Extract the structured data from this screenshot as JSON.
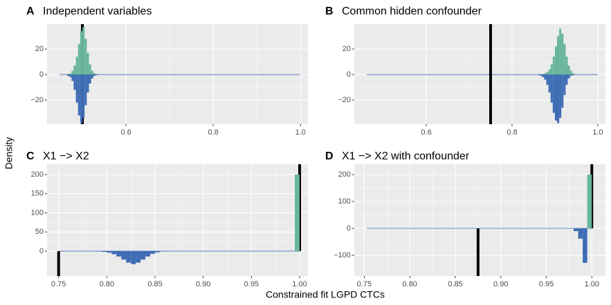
{
  "ylabel": "Density",
  "xlabel": "Constrained fit LGPD CTCs",
  "chart_data": [
    {
      "type": "histogram",
      "tag": "A",
      "title": "Independent variables",
      "xlim": [
        0.419,
        1.017
      ],
      "ylim": [
        -38.9,
        39.5
      ],
      "xticks": [
        0.6,
        0.8,
        {
          "value": 1.0,
          "label": "1.0"
        }
      ],
      "yticks": [
        {
          "value": -20,
          "label": "−20"
        },
        0,
        20
      ],
      "vline_up": 0.5,
      "vline_down": 0.5,
      "grid": true,
      "series": [
        {
          "color": "#69b59c",
          "bins": [
            0.46,
            0.465,
            0.47,
            0.475,
            0.48,
            0.485,
            0.49,
            0.495,
            0.5,
            0.505,
            0.51,
            0.515,
            0.52,
            0.525,
            0.53,
            0.535,
            0.54
          ],
          "values": [
            0,
            0.5,
            1,
            3,
            7,
            14,
            24,
            34,
            37,
            28,
            17,
            8,
            3,
            1,
            0.5,
            0
          ]
        },
        {
          "color": "#3e6db4",
          "bins": [
            0.46,
            0.465,
            0.47,
            0.475,
            0.48,
            0.485,
            0.49,
            0.495,
            0.5,
            0.505,
            0.51,
            0.515,
            0.52,
            0.525,
            0.53,
            0.535,
            0.54
          ],
          "values": [
            0,
            -1,
            -2,
            -5,
            -12,
            -22,
            -32,
            -38,
            -34,
            -24,
            -14,
            -7,
            -3,
            -1,
            -0.5,
            0
          ]
        }
      ]
    },
    {
      "type": "histogram",
      "tag": "B",
      "title": "Common hidden confounder",
      "xlim": [
        0.432,
        1.018
      ],
      "ylim": [
        -38.9,
        39.5
      ],
      "xticks": [
        0.6,
        0.8,
        {
          "value": 1.0,
          "label": "1.0"
        }
      ],
      "yticks": [
        {
          "value": -20,
          "label": "−20"
        },
        0,
        20
      ],
      "vline_up": 0.75,
      "vline_down": 0.75,
      "grid": true,
      "series": [
        {
          "color": "#69b59c",
          "bins": [
            0.86,
            0.865,
            0.87,
            0.875,
            0.88,
            0.885,
            0.89,
            0.895,
            0.9,
            0.905,
            0.91,
            0.915,
            0.92,
            0.925,
            0.93,
            0.935,
            0.94,
            0.945,
            0.95,
            0.955,
            0.96
          ],
          "values": [
            0,
            0,
            0.5,
            1,
            2,
            4,
            8,
            14,
            22,
            30,
            36,
            32,
            24,
            14,
            7,
            3,
            1,
            0.5,
            0,
            0
          ]
        },
        {
          "color": "#3e6db4",
          "bins": [
            0.86,
            0.865,
            0.87,
            0.875,
            0.88,
            0.885,
            0.89,
            0.895,
            0.9,
            0.905,
            0.91,
            0.915,
            0.92,
            0.925,
            0.93,
            0.935,
            0.94,
            0.945,
            0.95,
            0.955,
            0.96
          ],
          "values": [
            -0.5,
            -1,
            -2,
            -4,
            -8,
            -14,
            -22,
            -30,
            -36,
            -38,
            -34,
            -26,
            -16,
            -8,
            -3,
            -1,
            -0.5,
            0,
            0,
            0
          ]
        }
      ]
    },
    {
      "type": "histogram",
      "tag": "C",
      "title": "X1 −> X2",
      "xlim": [
        0.738,
        1.0086
      ],
      "ylim": [
        -65,
        227
      ],
      "xticks": [
        0.75,
        {
          "value": 0.8,
          "label": "0.80"
        },
        0.85,
        {
          "value": 0.9,
          "label": "0.90"
        },
        0.95,
        {
          "value": 1.0,
          "label": "1.00"
        }
      ],
      "yticks": [
        0,
        50,
        100,
        150,
        200
      ],
      "vline_up": 1.0,
      "vline_down": 0.75,
      "grid": true,
      "series": [
        {
          "color": "#69b59c",
          "bins": [
            0.995,
            1.0
          ],
          "values": [
            200
          ]
        },
        {
          "color": "#3e6db4",
          "bins": [
            0.79,
            0.795,
            0.8,
            0.805,
            0.81,
            0.815,
            0.82,
            0.825,
            0.83,
            0.835,
            0.84,
            0.845,
            0.85,
            0.855,
            0.86
          ],
          "values": [
            -1,
            -2,
            -4,
            -8,
            -14,
            -22,
            -30,
            -34,
            -30,
            -22,
            -14,
            -7,
            -3,
            -1
          ]
        }
      ]
    },
    {
      "type": "histogram",
      "tag": "D",
      "title": "X1 −> X2 with confounder",
      "xlim": [
        0.739,
        1.015
      ],
      "ylim": [
        -177,
        238.5
      ],
      "xticks": [
        0.75,
        {
          "value": 0.8,
          "label": "0.80"
        },
        0.85,
        {
          "value": 0.9,
          "label": "0.90"
        },
        0.95,
        {
          "value": 1.0,
          "label": "1.00"
        }
      ],
      "yticks": [
        {
          "value": -100,
          "label": "−100"
        },
        0,
        100,
        200
      ],
      "vline_up": 1.0,
      "vline_down": 0.875,
      "grid": true,
      "series": [
        {
          "color": "#69b59c",
          "bins": [
            0.995,
            1.0
          ],
          "values": [
            200
          ]
        },
        {
          "color": "#3e6db4",
          "bins": [
            0.98,
            0.985,
            0.99,
            0.995
          ],
          "values": [
            -10,
            -38,
            -128
          ]
        }
      ]
    }
  ]
}
